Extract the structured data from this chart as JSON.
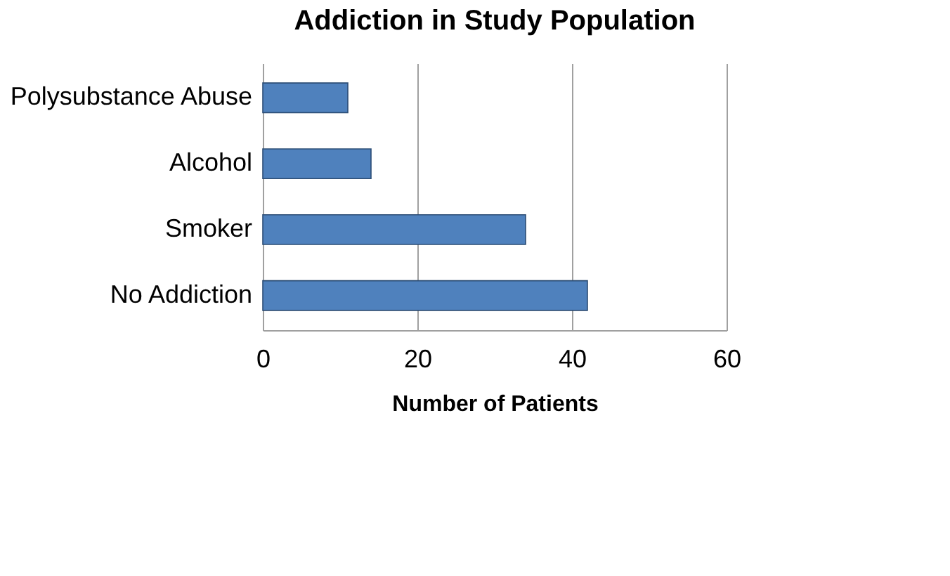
{
  "chart_data": {
    "type": "bar",
    "orientation": "horizontal",
    "title": "Addiction in Study Population",
    "xlabel": "Number of Patients",
    "categories": [
      "Polysubstance Abuse",
      "Alcohol",
      "Smoker",
      "No Addiction"
    ],
    "values": [
      11,
      14,
      34,
      42
    ],
    "color": "#4f81bd",
    "xlim": [
      0,
      60
    ],
    "xticks": [
      0,
      20,
      40,
      60
    ],
    "grid": "x"
  }
}
